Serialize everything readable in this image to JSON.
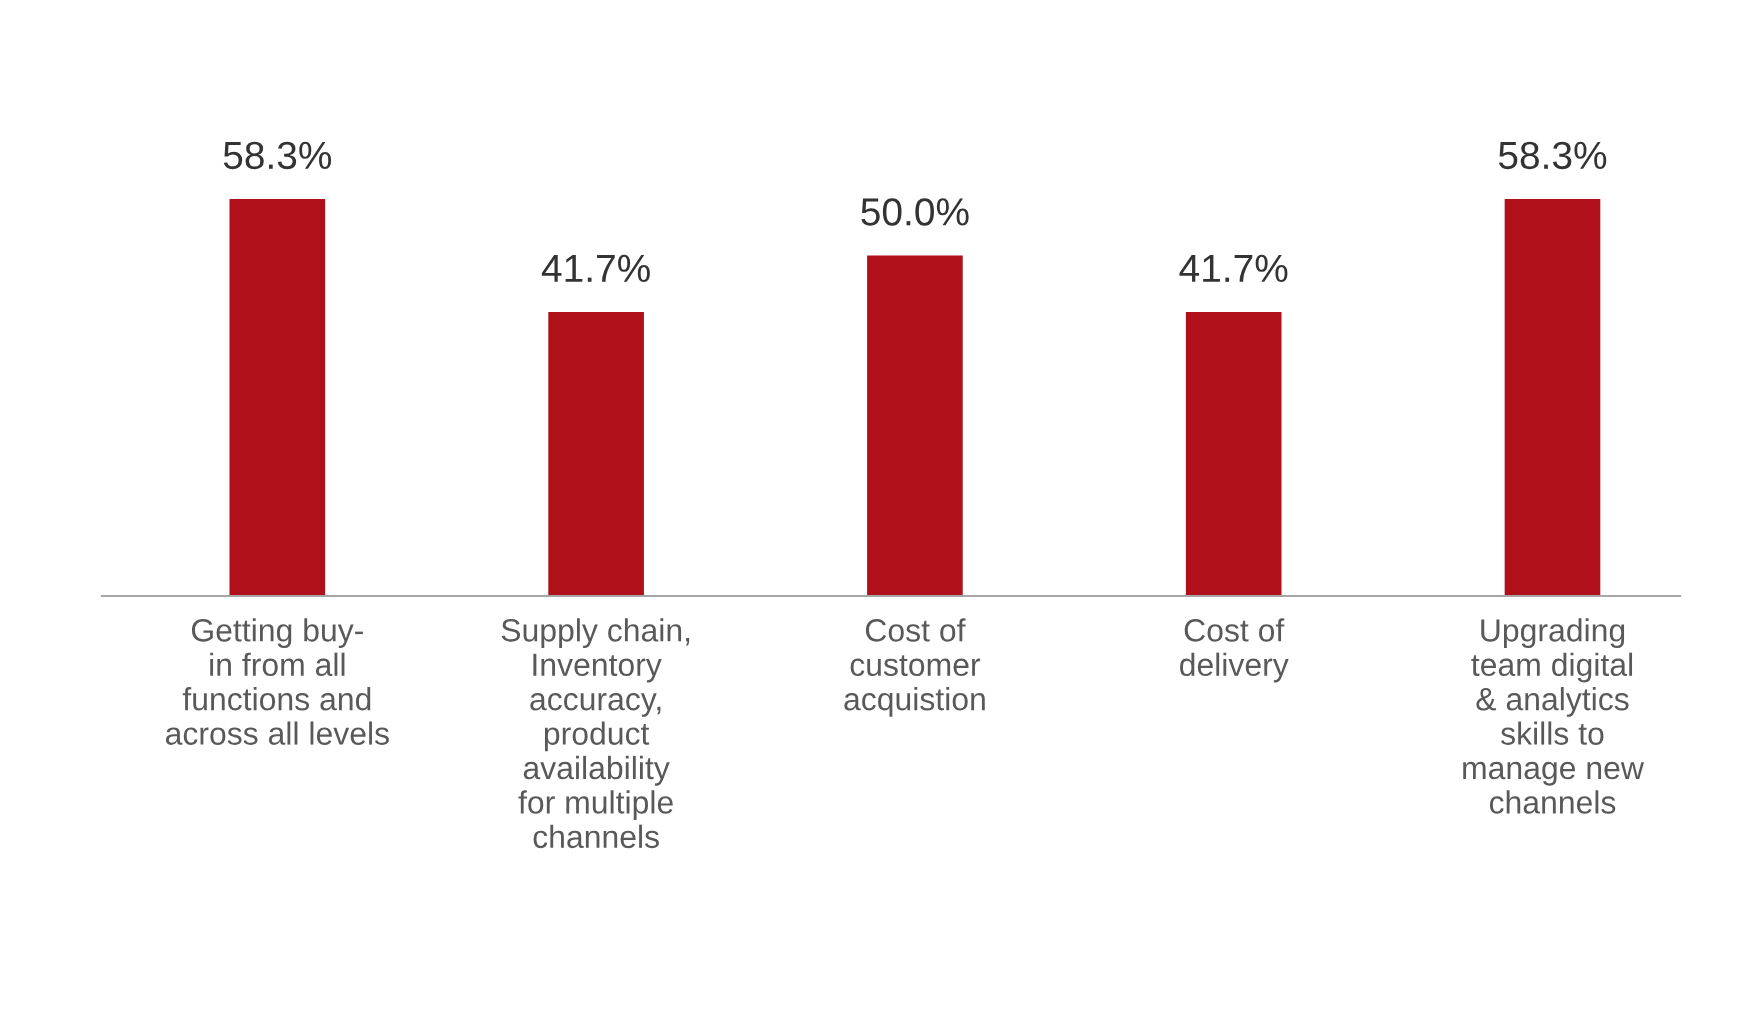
{
  "chart_data": {
    "type": "bar",
    "categories": [
      "Getting buy-\nin from all\nfunctions and\nacross all levels",
      "Supply chain,\nInventory\naccuracy,\nproduct\navailability\nfor multiple\nchannels",
      "Cost of\ncustomer\nacquistion",
      "Cost of\ndelivery",
      "Upgrading\nteam digital\n& analytics\nskills to\nmanage new\nchannels"
    ],
    "values": [
      58.3,
      41.7,
      50.0,
      41.7,
      58.3
    ],
    "value_labels": [
      "58.3%",
      "41.7%",
      "50.0%",
      "41.7%",
      "58.3%"
    ],
    "color": "#b01019"
  }
}
